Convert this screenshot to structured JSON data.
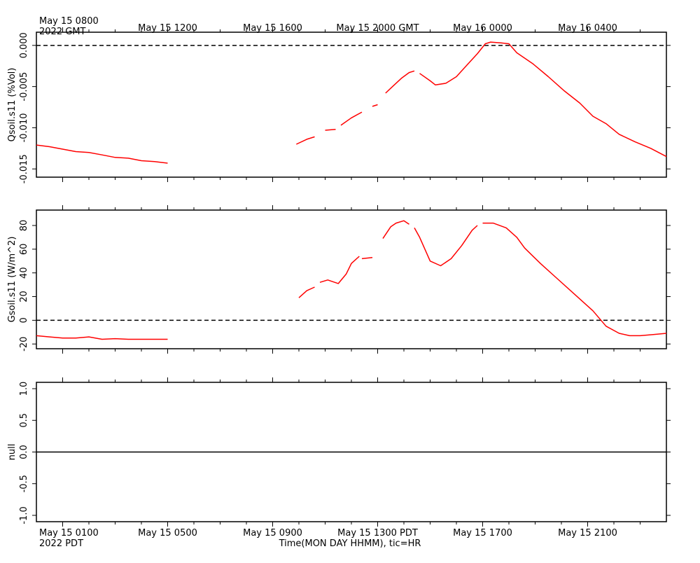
{
  "chart_data": {
    "type": "line",
    "top_time_axis": {
      "ticks": [
        "May 15 0800",
        "May 15 1200",
        "May 15 1600",
        "May 15 2000 GMT",
        "May 16 0000",
        "May 16 0400"
      ],
      "first_tick_sub": "2022 GMT"
    },
    "bottom_time_axis": {
      "ticks": [
        "May 15 0100",
        "May 15 0500",
        "May 15 0900",
        "May 15 1300 PDT",
        "May 15 1700",
        "May 15 2100"
      ],
      "first_tick_sub": "2022 PDT",
      "xlabel": "Time(MON DAY HHMM), tic=HR"
    },
    "x_range_hours_pdt": [
      0,
      24
    ],
    "panels": [
      {
        "ylabel": "Qsoil.s11 (%Vol)",
        "ylim": [
          -0.016,
          0.0016
        ],
        "yticks": [
          0.0,
          -0.005,
          -0.01,
          -0.015
        ],
        "ytick_labels": [
          "0.000",
          "-0.005",
          "-0.010",
          "-0.015"
        ],
        "reference_line": 0,
        "reference_style": "dashed",
        "series": [
          {
            "color": "#ff0000",
            "segments": [
              [
                [
                  0.0,
                  -0.0121
                ],
                [
                  0.5,
                  -0.0123
                ],
                [
                  1.0,
                  -0.0126
                ],
                [
                  1.5,
                  -0.0129
                ],
                [
                  2.0,
                  -0.013
                ],
                [
                  2.5,
                  -0.0133
                ],
                [
                  3.0,
                  -0.0136
                ],
                [
                  3.5,
                  -0.0137
                ],
                [
                  4.0,
                  -0.014
                ],
                [
                  4.5,
                  -0.0141
                ],
                [
                  5.0,
                  -0.0143
                ]
              ],
              [
                [
                  9.9,
                  -0.012
                ],
                [
                  10.3,
                  -0.0114
                ],
                [
                  10.6,
                  -0.0111
                ]
              ],
              [
                [
                  11.0,
                  -0.0103
                ],
                [
                  11.4,
                  -0.0102
                ]
              ],
              [
                [
                  11.6,
                  -0.0097
                ],
                [
                  12.0,
                  -0.0088
                ],
                [
                  12.4,
                  -0.0081
                ]
              ],
              [
                [
                  12.8,
                  -0.0074
                ],
                [
                  13.0,
                  -0.0072
                ]
              ],
              [
                [
                  13.3,
                  -0.0058
                ],
                [
                  13.6,
                  -0.0049
                ],
                [
                  13.9,
                  -0.004
                ],
                [
                  14.2,
                  -0.0033
                ],
                [
                  14.4,
                  -0.0031
                ]
              ],
              [
                [
                  14.6,
                  -0.0034
                ],
                [
                  15.0,
                  -0.0043
                ],
                [
                  15.2,
                  -0.0048
                ],
                [
                  15.6,
                  -0.0046
                ],
                [
                  16.0,
                  -0.0038
                ],
                [
                  16.4,
                  -0.0024
                ],
                [
                  16.8,
                  -0.001
                ],
                [
                  17.1,
                  0.0002
                ],
                [
                  17.3,
                  0.0004
                ],
                [
                  17.7,
                  0.0003
                ],
                [
                  18.0,
                  0.0002
                ],
                [
                  18.3,
                  -0.0009
                ],
                [
                  18.9,
                  -0.0022
                ],
                [
                  19.5,
                  -0.0038
                ],
                [
                  20.1,
                  -0.0055
                ],
                [
                  20.7,
                  -0.007
                ],
                [
                  21.2,
                  -0.0086
                ],
                [
                  21.7,
                  -0.0095
                ],
                [
                  22.2,
                  -0.0108
                ],
                [
                  22.8,
                  -0.0117
                ],
                [
                  23.4,
                  -0.0125
                ],
                [
                  24.0,
                  -0.0135
                ]
              ]
            ]
          }
        ]
      },
      {
        "ylabel": "Gsoil.s11 (W/m^2)",
        "ylim": [
          -24,
          93
        ],
        "yticks": [
          80,
          60,
          40,
          20,
          0,
          -20
        ],
        "ytick_labels": [
          "80",
          "60",
          "40",
          "20",
          "0",
          "-20"
        ],
        "reference_line": 0,
        "reference_style": "dashed",
        "series": [
          {
            "color": "#ff0000",
            "segments": [
              [
                [
                  0.0,
                  -13
                ],
                [
                  0.5,
                  -14
                ],
                [
                  1.0,
                  -15
                ],
                [
                  1.5,
                  -15
                ],
                [
                  2.0,
                  -14
                ],
                [
                  2.5,
                  -16
                ],
                [
                  3.0,
                  -15.5
                ],
                [
                  3.5,
                  -16
                ],
                [
                  4.0,
                  -16
                ],
                [
                  4.5,
                  -16
                ],
                [
                  5.0,
                  -16
                ]
              ],
              [
                [
                  10.0,
                  19
                ],
                [
                  10.3,
                  25
                ],
                [
                  10.6,
                  28
                ]
              ],
              [
                [
                  10.8,
                  32
                ],
                [
                  11.1,
                  34
                ],
                [
                  11.5,
                  31
                ],
                [
                  11.8,
                  39
                ],
                [
                  12.0,
                  48
                ],
                [
                  12.3,
                  54
                ]
              ],
              [
                [
                  12.4,
                  52
                ],
                [
                  12.8,
                  53
                ]
              ],
              [
                [
                  13.2,
                  69
                ],
                [
                  13.5,
                  79
                ],
                [
                  13.7,
                  82
                ],
                [
                  14.0,
                  84
                ],
                [
                  14.2,
                  81
                ]
              ],
              [
                [
                  14.4,
                  78
                ],
                [
                  14.6,
                  70
                ],
                [
                  15.0,
                  50
                ],
                [
                  15.4,
                  46
                ],
                [
                  15.8,
                  52
                ],
                [
                  16.2,
                  63
                ],
                [
                  16.6,
                  76
                ],
                [
                  16.8,
                  80
                ]
              ],
              [
                [
                  17.0,
                  82
                ],
                [
                  17.4,
                  82
                ],
                [
                  17.9,
                  78
                ],
                [
                  18.3,
                  70
                ],
                [
                  18.6,
                  61
                ],
                [
                  19.2,
                  48
                ],
                [
                  19.8,
                  36
                ],
                [
                  20.5,
                  22
                ],
                [
                  21.2,
                  8
                ],
                [
                  21.7,
                  -5
                ],
                [
                  22.2,
                  -11
                ],
                [
                  22.6,
                  -13
                ],
                [
                  23.0,
                  -13
                ],
                [
                  23.5,
                  -12
                ],
                [
                  24.0,
                  -11
                ]
              ]
            ]
          }
        ]
      },
      {
        "ylabel": "null",
        "ylim": [
          -1.1,
          1.1
        ],
        "yticks": [
          1.0,
          0.5,
          0.0,
          -0.5,
          -1.0
        ],
        "ytick_labels": [
          "1.0",
          "0.5",
          "0.0",
          "-0.5",
          "-1.0"
        ],
        "reference_line": 0,
        "reference_style": "solid",
        "series": []
      }
    ]
  }
}
